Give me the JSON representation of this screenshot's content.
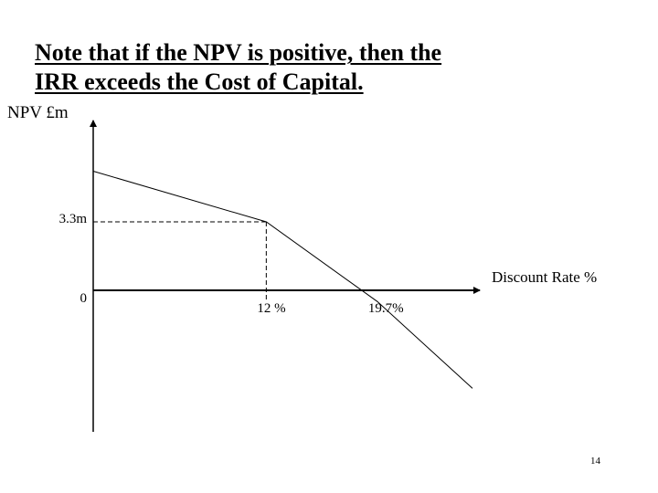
{
  "slide": {
    "title_lines": [
      "Note that if the NPV is positive, then the",
      "IRR exceeds the Cost of Capital."
    ],
    "page_number": "14"
  },
  "chart_data": {
    "type": "line",
    "xlabel": "Discount Rate %",
    "ylabel": "NPV £m",
    "x_ticks": [
      {
        "label": "12 %",
        "value": 12
      },
      {
        "label": "19.7%",
        "value": 19.7
      }
    ],
    "y_ticks": [
      {
        "label": "3.3m",
        "value": 3.3
      },
      {
        "label": "0",
        "value": 0
      }
    ],
    "series": [
      {
        "x": [
          0,
          12,
          19.7,
          26.3
        ],
        "y": [
          5.4,
          3.3,
          0,
          -3.6
        ]
      }
    ],
    "reference_point": {
      "x": 12,
      "y": 3.3
    },
    "xlim": [
      0,
      26.3
    ],
    "ylim": [
      -5.4,
      7.5
    ],
    "grid": false,
    "legend": "none"
  }
}
